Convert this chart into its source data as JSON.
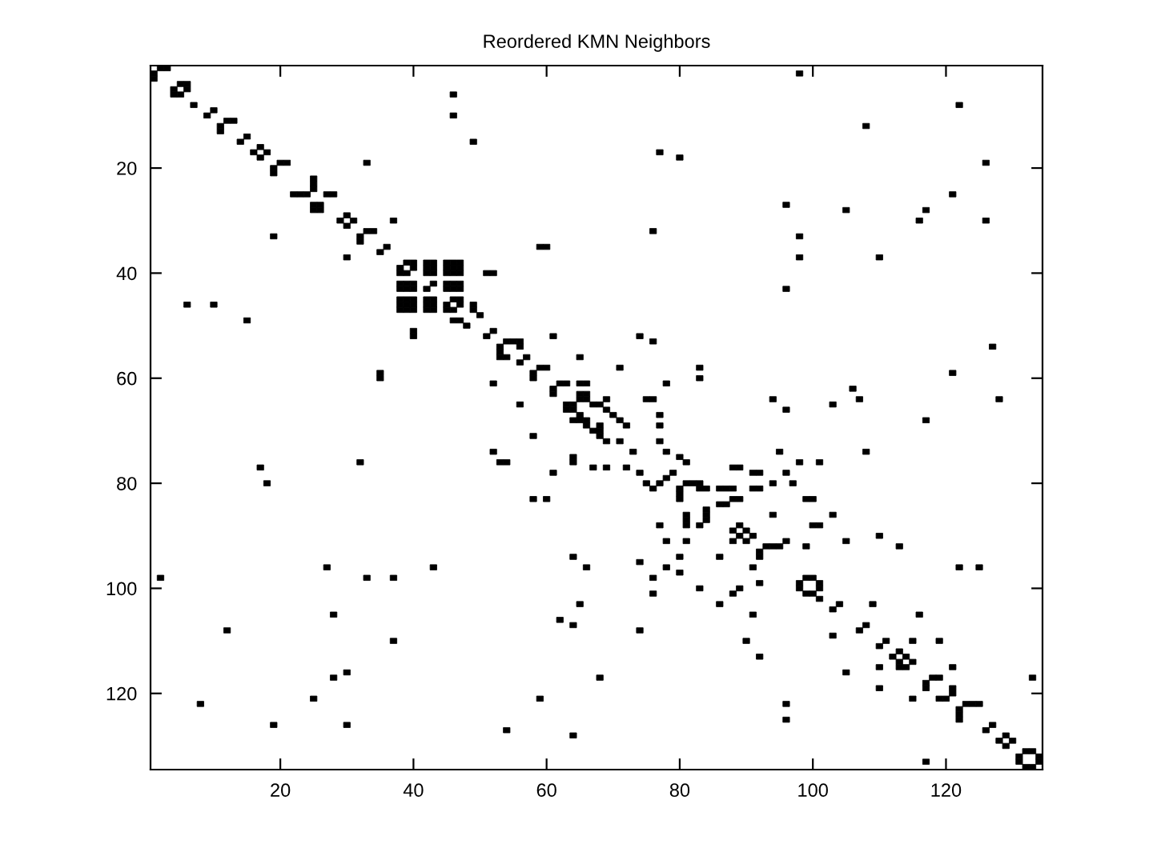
{
  "chart_data": {
    "type": "scatter",
    "title": "Reordered KMN Neighbors",
    "series": [
      {
        "color": "#000000",
        "x": [
          2,
          3,
          1,
          1,
          5,
          6,
          4,
          6,
          4,
          5,
          7,
          10,
          9,
          12,
          13,
          11,
          11,
          15,
          14,
          17,
          16,
          18,
          17,
          20,
          21,
          19,
          19,
          33,
          19,
          25,
          25,
          25,
          22,
          23,
          24,
          27,
          28,
          25,
          26,
          25,
          26,
          30,
          29,
          31,
          30,
          37,
          33,
          34,
          32,
          32,
          36,
          35,
          30,
          59,
          60,
          51,
          52,
          46,
          46,
          49,
          39,
          40,
          42,
          43,
          45,
          46,
          47,
          38,
          40,
          42,
          43,
          45,
          46,
          47,
          38,
          39,
          42,
          43,
          45,
          46,
          47,
          38,
          39,
          40,
          43,
          45,
          46,
          47,
          38,
          39,
          40,
          42,
          45,
          46,
          47,
          38,
          39,
          40,
          42,
          43,
          46,
          47,
          38,
          39,
          40,
          42,
          43,
          45,
          47,
          38,
          39,
          40,
          42,
          43,
          45,
          46,
          49,
          49,
          46,
          47,
          48,
          50,
          98,
          122,
          108,
          77,
          80,
          126,
          96,
          105,
          117,
          121,
          116,
          126,
          76,
          98,
          98,
          110,
          96,
          6,
          10,
          15,
          40,
          40,
          35,
          35,
          52,
          51,
          52,
          61,
          65,
          54,
          55,
          56,
          53,
          53,
          53,
          54,
          56,
          57,
          56,
          59,
          60,
          58,
          58,
          62,
          63,
          65,
          66,
          61,
          61,
          65,
          66,
          65,
          66,
          63,
          64,
          63,
          64,
          67,
          68,
          65,
          64,
          65,
          66,
          66,
          67,
          68,
          56,
          58,
          52,
          53,
          54,
          64,
          64,
          67,
          61,
          58,
          60,
          17,
          18,
          32,
          74,
          76,
          71,
          83,
          83,
          78,
          127,
          121,
          128,
          106,
          107,
          103,
          117,
          94,
          96,
          75,
          76,
          69,
          69,
          70,
          71,
          72,
          68,
          68,
          69,
          71,
          73,
          77,
          77,
          77,
          78,
          80,
          81,
          69,
          72,
          74,
          75,
          76,
          77,
          78,
          79,
          81,
          82,
          83,
          83,
          84,
          80,
          80,
          80,
          95,
          108,
          98,
          101,
          88,
          89,
          91,
          92,
          96,
          94,
          97,
          91,
          92,
          86,
          87,
          88,
          88,
          89,
          99,
          100,
          86,
          87,
          84,
          84,
          84,
          81,
          81,
          81,
          77,
          83,
          94,
          103,
          100,
          101,
          110,
          88,
          89,
          90,
          2,
          27,
          33,
          37,
          43,
          64,
          66,
          65,
          62,
          64,
          28,
          12,
          37,
          68,
          28,
          30,
          25,
          8,
          19,
          30,
          54,
          59,
          64,
          78,
          81,
          74,
          76,
          76,
          74,
          78,
          80,
          80,
          83,
          86,
          86,
          88,
          89,
          88,
          89,
          90,
          91,
          93,
          94,
          95,
          96,
          99,
          105,
          113,
          92,
          92,
          91,
          92,
          91,
          90,
          92,
          99,
          100,
          98,
          101,
          98,
          101,
          99,
          100,
          101,
          103,
          104,
          109,
          116,
          103,
          107,
          108,
          110,
          111,
          115,
          119,
          112,
          113,
          114,
          113,
          115,
          114,
          113,
          110,
          105,
          110,
          115,
          121,
          118,
          119,
          117,
          117,
          119,
          120,
          121,
          121,
          123,
          124,
          125,
          122,
          122,
          122,
          122,
          125,
          133,
          96,
          96,
          117,
          127,
          126,
          129,
          128,
          130,
          129,
          132,
          133,
          131,
          134,
          131,
          134,
          132,
          133
        ],
        "values": [
          1,
          1,
          2,
          3,
          4,
          4,
          5,
          5,
          6,
          6,
          8,
          9,
          10,
          11,
          11,
          12,
          13,
          14,
          15,
          16,
          17,
          17,
          18,
          19,
          19,
          20,
          21,
          19,
          33,
          22,
          23,
          24,
          25,
          25,
          25,
          25,
          25,
          27,
          27,
          28,
          28,
          29,
          30,
          30,
          31,
          30,
          32,
          32,
          33,
          34,
          35,
          36,
          37,
          35,
          35,
          40,
          40,
          6,
          10,
          15,
          38,
          38,
          38,
          38,
          38,
          38,
          38,
          39,
          39,
          39,
          39,
          39,
          39,
          39,
          40,
          40,
          40,
          40,
          40,
          40,
          40,
          42,
          42,
          42,
          42,
          42,
          42,
          42,
          43,
          43,
          43,
          43,
          43,
          43,
          43,
          45,
          45,
          45,
          45,
          45,
          45,
          45,
          46,
          46,
          46,
          46,
          46,
          46,
          46,
          47,
          47,
          47,
          47,
          47,
          47,
          47,
          46,
          47,
          49,
          49,
          50,
          48,
          2,
          8,
          12,
          17,
          18,
          19,
          27,
          28,
          28,
          25,
          30,
          30,
          32,
          33,
          37,
          37,
          43,
          46,
          46,
          49,
          51,
          52,
          59,
          60,
          61,
          52,
          51,
          52,
          56,
          53,
          53,
          53,
          54,
          55,
          56,
          56,
          54,
          56,
          57,
          58,
          58,
          59,
          60,
          61,
          61,
          61,
          61,
          62,
          63,
          63,
          63,
          64,
          64,
          65,
          65,
          66,
          66,
          65,
          65,
          67,
          68,
          68,
          68,
          69,
          70,
          70,
          65,
          71,
          74,
          76,
          76,
          75,
          76,
          77,
          78,
          83,
          83,
          77,
          80,
          76,
          52,
          53,
          58,
          58,
          60,
          61,
          54,
          59,
          64,
          62,
          64,
          65,
          68,
          64,
          66,
          64,
          64,
          64,
          66,
          67,
          68,
          69,
          69,
          71,
          72,
          72,
          74,
          67,
          69,
          72,
          74,
          75,
          76,
          77,
          77,
          78,
          80,
          81,
          80,
          79,
          78,
          80,
          80,
          80,
          81,
          81,
          81,
          82,
          83,
          74,
          74,
          76,
          76,
          77,
          77,
          78,
          78,
          78,
          80,
          80,
          81,
          81,
          81,
          81,
          81,
          83,
          83,
          83,
          83,
          84,
          84,
          85,
          86,
          87,
          86,
          87,
          88,
          88,
          88,
          86,
          86,
          88,
          88,
          90,
          89,
          88,
          89,
          98,
          96,
          98,
          98,
          96,
          94,
          96,
          103,
          106,
          107,
          105,
          108,
          110,
          117,
          117,
          116,
          121,
          122,
          126,
          126,
          127,
          121,
          128,
          91,
          91,
          95,
          98,
          101,
          108,
          96,
          94,
          97,
          100,
          94,
          103,
          101,
          100,
          91,
          90,
          91,
          90,
          92,
          92,
          92,
          91,
          92,
          91,
          92,
          93,
          94,
          96,
          99,
          105,
          110,
          113,
          98,
          98,
          99,
          99,
          100,
          100,
          101,
          101,
          102,
          104,
          103,
          103,
          105,
          109,
          108,
          107,
          111,
          110,
          110,
          110,
          113,
          112,
          113,
          114,
          114,
          115,
          115,
          115,
          116,
          119,
          121,
          115,
          117,
          117,
          118,
          119,
          121,
          121,
          119,
          120,
          122,
          122,
          122,
          123,
          124,
          125,
          96,
          96,
          117,
          122,
          125,
          133,
          126,
          127,
          128,
          129,
          129,
          130,
          131,
          131,
          132,
          132,
          133,
          133,
          134,
          134
        ]
      }
    ],
    "xlim": [
      0.5,
      134.5
    ],
    "ylim": [
      134.5,
      0.5
    ],
    "xticks": [
      20,
      40,
      60,
      80,
      100,
      120
    ],
    "yticks": [
      20,
      40,
      60,
      80,
      100,
      120
    ],
    "marker": "square"
  }
}
